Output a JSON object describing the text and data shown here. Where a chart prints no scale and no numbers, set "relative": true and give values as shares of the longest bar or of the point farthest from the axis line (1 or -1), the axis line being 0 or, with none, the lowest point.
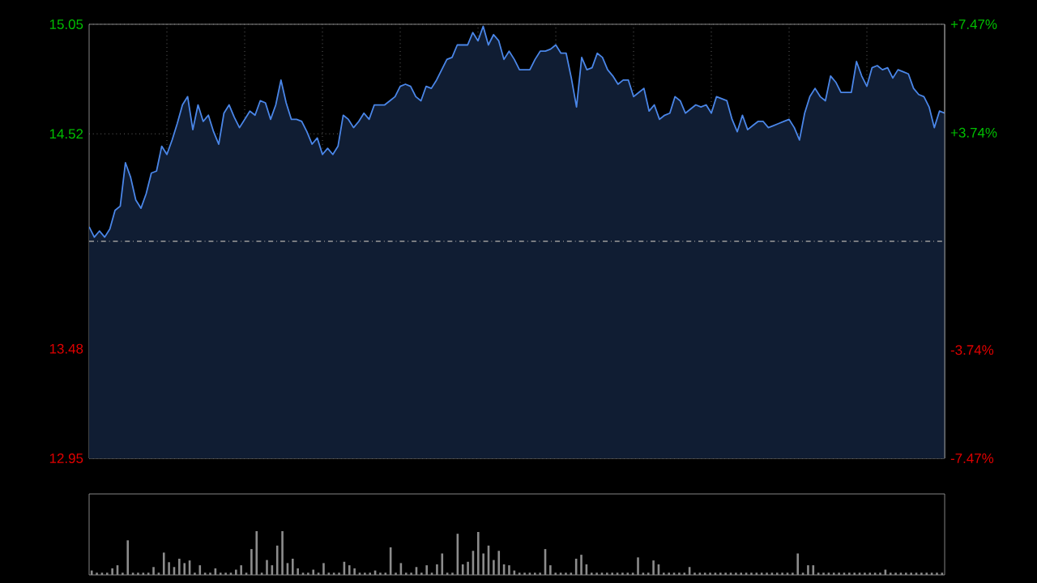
{
  "chart_data": [
    {
      "type": "area",
      "categories": [
        null,
        null,
        null,
        null,
        null,
        null,
        null,
        null,
        null,
        null,
        null,
        null,
        null,
        null,
        null,
        null,
        null,
        null,
        null,
        null,
        null,
        null,
        null,
        null,
        null,
        null,
        null,
        null,
        null,
        null,
        null,
        null,
        null,
        null,
        null,
        null,
        null,
        null,
        null,
        null,
        null,
        null,
        null,
        null,
        null,
        null,
        null,
        null,
        null,
        null,
        null,
        null,
        null,
        null,
        null,
        null,
        null,
        null,
        null,
        null,
        null,
        null,
        null,
        null,
        null,
        null,
        null,
        null,
        null,
        null,
        null,
        null,
        null,
        null,
        null,
        null,
        null,
        null,
        null,
        null,
        null,
        null,
        null,
        null,
        null,
        null,
        null,
        null,
        null,
        null,
        null,
        null,
        null,
        null,
        null,
        null,
        null,
        null,
        null,
        null,
        null,
        null,
        null,
        null,
        null,
        null,
        null,
        null,
        null,
        null,
        null,
        null,
        null,
        null,
        null,
        null,
        null,
        null,
        null,
        null,
        null,
        null,
        null,
        null,
        null,
        null,
        null,
        null,
        null,
        null,
        null,
        null,
        null,
        null,
        null,
        null,
        null,
        null,
        null,
        null,
        null,
        null,
        null,
        null,
        null,
        null,
        null,
        null,
        null,
        null,
        null,
        null,
        null,
        null,
        null,
        null,
        null,
        null,
        null,
        null,
        null,
        null,
        null,
        null,
        null,
        null
      ],
      "ylim": [
        12.95,
        15.05
      ],
      "yticks": [
        15.05,
        14.52,
        13.48,
        12.95
      ],
      "y2lim": [
        -7.47,
        7.47
      ],
      "y2ticks": [
        {
          "value": 7.47,
          "label": "+7.47%"
        },
        {
          "value": 3.74,
          "label": "+3.74%"
        },
        {
          "value": -3.74,
          "label": "-3.74%"
        },
        {
          "value": -7.47,
          "label": "-7.47%"
        }
      ],
      "tick_labels": "y",
      "grid": true,
      "ref_lines": [
        {
          "axis": "y",
          "value": 14.0,
          "color": "#9a9a9a",
          "line_style": "dashdot"
        }
      ],
      "series": [
        {
          "color": "#4a86e8",
          "values": [
            14.07,
            14.02,
            14.05,
            14.02,
            14.06,
            14.15,
            14.17,
            14.38,
            14.31,
            14.2,
            14.16,
            14.23,
            14.33,
            14.34,
            14.46,
            14.42,
            14.49,
            14.57,
            14.66,
            14.7,
            14.54,
            14.66,
            14.58,
            14.61,
            14.53,
            14.47,
            14.62,
            14.66,
            14.6,
            14.55,
            14.59,
            14.63,
            14.61,
            14.68,
            14.67,
            14.59,
            14.66,
            14.78,
            14.67,
            14.59,
            14.59,
            14.58,
            14.53,
            14.47,
            14.5,
            14.42,
            14.45,
            14.42,
            14.46,
            14.61,
            14.59,
            14.55,
            14.58,
            14.62,
            14.59,
            14.66,
            14.66,
            14.66,
            14.68,
            14.7,
            14.75,
            14.76,
            14.75,
            14.7,
            14.68,
            14.75,
            14.74,
            14.78,
            14.83,
            14.88,
            14.89,
            14.95,
            14.95,
            14.95,
            15.01,
            14.97,
            15.04,
            14.95,
            15.0,
            14.97,
            14.88,
            14.92,
            14.88,
            14.83,
            14.83,
            14.83,
            14.88,
            14.92,
            14.92,
            14.93,
            14.95,
            14.91,
            14.91,
            14.79,
            14.65,
            14.89,
            14.83,
            14.84,
            14.91,
            14.89,
            14.83,
            14.8,
            14.76,
            14.78,
            14.78,
            14.7,
            14.72,
            14.74,
            14.63,
            14.66,
            14.59,
            14.61,
            14.62,
            14.7,
            14.68,
            14.62,
            14.64,
            14.66,
            14.65,
            14.66,
            14.62,
            14.7,
            14.69,
            14.68,
            14.59,
            14.53,
            14.61,
            14.54,
            14.56,
            14.58,
            14.58,
            14.55,
            14.56,
            14.57,
            14.58,
            14.59,
            14.55,
            14.49,
            14.62,
            14.7,
            14.74,
            14.7,
            14.68,
            14.8,
            14.77,
            14.72,
            14.72,
            14.72,
            14.87,
            14.8,
            14.75,
            14.84,
            14.85,
            14.83,
            14.84,
            14.79,
            14.83,
            14.82,
            14.81,
            14.74,
            14.71,
            14.7,
            14.65,
            14.55,
            14.63,
            14.62
          ]
        }
      ]
    },
    {
      "type": "bar",
      "relative": true,
      "color": "#8c8c8c",
      "categories": [
        null,
        null,
        null,
        null,
        null,
        null,
        null,
        null,
        null,
        null,
        null,
        null,
        null,
        null,
        null,
        null,
        null,
        null,
        null,
        null,
        null,
        null,
        null,
        null,
        null,
        null,
        null,
        null,
        null,
        null,
        null,
        null,
        null,
        null,
        null,
        null,
        null,
        null,
        null,
        null,
        null,
        null,
        null,
        null,
        null,
        null,
        null,
        null,
        null,
        null,
        null,
        null,
        null,
        null,
        null,
        null,
        null,
        null,
        null,
        null,
        null,
        null,
        null,
        null,
        null,
        null,
        null,
        null,
        null,
        null,
        null,
        null,
        null,
        null,
        null,
        null,
        null,
        null,
        null,
        null,
        null,
        null,
        null,
        null,
        null,
        null,
        null,
        null,
        null,
        null,
        null,
        null,
        null,
        null,
        null,
        null,
        null,
        null,
        null,
        null,
        null,
        null,
        null,
        null,
        null,
        null,
        null,
        null,
        null,
        null,
        null,
        null,
        null,
        null,
        null,
        null,
        null,
        null,
        null,
        null,
        null,
        null,
        null,
        null,
        null,
        null,
        null,
        null,
        null,
        null,
        null,
        null,
        null,
        null,
        null,
        null,
        null,
        null,
        null,
        null,
        null,
        null,
        null,
        null,
        null,
        null,
        null,
        null,
        null,
        null,
        null,
        null,
        null,
        null,
        null,
        null,
        null,
        null,
        null,
        null,
        null,
        null,
        null,
        null,
        null,
        null
      ],
      "values": [
        0.1,
        0.05,
        0.05,
        0.05,
        0.15,
        0.22,
        0.05,
        0.79,
        0.05,
        0.05,
        0.05,
        0.05,
        0.18,
        0.05,
        0.51,
        0.29,
        0.18,
        0.37,
        0.27,
        0.33,
        0.05,
        0.22,
        0.05,
        0.05,
        0.15,
        0.05,
        0.05,
        0.05,
        0.12,
        0.22,
        0.05,
        0.59,
        1.0,
        0.05,
        0.34,
        0.22,
        0.67,
        1.0,
        0.27,
        0.37,
        0.15,
        0.05,
        0.05,
        0.12,
        0.05,
        0.27,
        0.05,
        0.05,
        0.05,
        0.3,
        0.22,
        0.15,
        0.05,
        0.05,
        0.05,
        0.1,
        0.05,
        0.05,
        0.63,
        0.05,
        0.27,
        0.05,
        0.05,
        0.18,
        0.05,
        0.22,
        0.05,
        0.24,
        0.49,
        0.05,
        0.05,
        0.94,
        0.24,
        0.3,
        0.55,
        0.98,
        0.49,
        0.67,
        0.34,
        0.55,
        0.24,
        0.22,
        0.1,
        0.05,
        0.05,
        0.05,
        0.05,
        0.05,
        0.59,
        0.22,
        0.05,
        0.05,
        0.05,
        0.05,
        0.37,
        0.46,
        0.24,
        0.05,
        0.05,
        0.05,
        0.05,
        0.05,
        0.05,
        0.05,
        0.05,
        0.05,
        0.4,
        0.05,
        0.05,
        0.33,
        0.24,
        0.05,
        0.05,
        0.05,
        0.05,
        0.05,
        0.18,
        0.05,
        0.05,
        0.05,
        0.05,
        0.05,
        0.05,
        0.05,
        0.05,
        0.05,
        0.05,
        0.05,
        0.05,
        0.05,
        0.05,
        0.05,
        0.05,
        0.05,
        0.05,
        0.05,
        0.05,
        0.49,
        0.05,
        0.22,
        0.22,
        0.05,
        0.05,
        0.05,
        0.05,
        0.05,
        0.05,
        0.05,
        0.05,
        0.05,
        0.05,
        0.05,
        0.05,
        0.05,
        0.12,
        0.05,
        0.05,
        0.05,
        0.05,
        0.05,
        0.05,
        0.05,
        0.05,
        0.05,
        0.05,
        0.05
      ]
    }
  ]
}
